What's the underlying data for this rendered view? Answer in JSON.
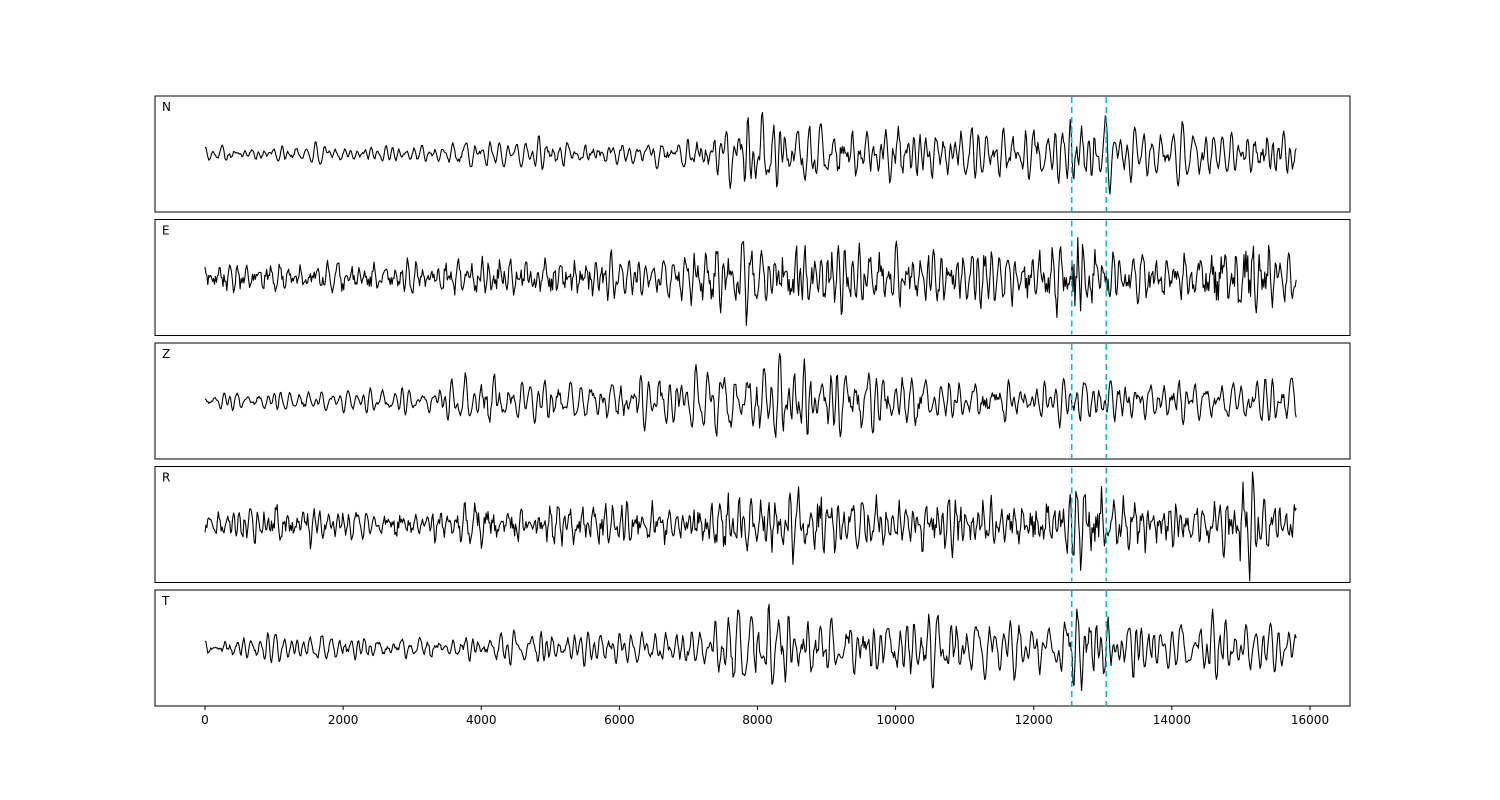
{
  "figure": {
    "background": "#ffffff",
    "trace_color": "#000000",
    "pick_color": "#00bfcf",
    "border_color": "#000000"
  },
  "chart_data": {
    "type": "line",
    "title": "",
    "xlabel": "",
    "ylabel": "",
    "grid": false,
    "legend": "none",
    "xlim": [
      -724,
      16580
    ],
    "x_range": [
      0,
      15800
    ],
    "xticks": [
      0,
      2000,
      4000,
      6000,
      8000,
      10000,
      12000,
      14000,
      16000
    ],
    "picks": [
      12550,
      13050
    ],
    "picks_style": "dashed-vertical",
    "series_description": "Five-component band-limited seismic waveform traces with amplitude envelopes; two cyan dashed vertical pick lines near x=12550 and x=13050",
    "panels": [
      {
        "label": "N",
        "seed": 101,
        "smooth": 2,
        "amp": 50,
        "envelope": [
          [
            0,
            0.16
          ],
          [
            1500,
            0.18
          ],
          [
            3000,
            0.2
          ],
          [
            4200,
            0.28
          ],
          [
            5000,
            0.26
          ],
          [
            6000,
            0.3
          ],
          [
            7000,
            0.42
          ],
          [
            7600,
            0.7
          ],
          [
            8100,
            1.0
          ],
          [
            8600,
            0.8
          ],
          [
            9200,
            0.65
          ],
          [
            10000,
            0.6
          ],
          [
            11000,
            0.55
          ],
          [
            12300,
            0.6
          ],
          [
            12650,
            1.0
          ],
          [
            13100,
            0.65
          ],
          [
            13600,
            0.55
          ],
          [
            14500,
            0.5
          ],
          [
            15300,
            0.5
          ],
          [
            15800,
            0.45
          ]
        ]
      },
      {
        "label": "E",
        "seed": 202,
        "smooth": 1,
        "amp": 48,
        "envelope": [
          [
            0,
            0.3
          ],
          [
            1200,
            0.34
          ],
          [
            2200,
            0.3
          ],
          [
            3200,
            0.33
          ],
          [
            3700,
            0.5
          ],
          [
            4500,
            0.42
          ],
          [
            5300,
            0.4
          ],
          [
            6000,
            0.48
          ],
          [
            6800,
            0.45
          ],
          [
            7400,
            0.6
          ],
          [
            7900,
            0.85
          ],
          [
            8400,
            0.75
          ],
          [
            9100,
            0.8
          ],
          [
            9800,
            0.65
          ],
          [
            10800,
            0.6
          ],
          [
            11800,
            0.55
          ],
          [
            12350,
            0.65
          ],
          [
            12650,
            1.0
          ],
          [
            13150,
            0.65
          ],
          [
            14000,
            0.55
          ],
          [
            14600,
            0.6
          ],
          [
            15050,
            1.0
          ],
          [
            15500,
            0.6
          ],
          [
            15800,
            0.85
          ]
        ]
      },
      {
        "label": "Z",
        "seed": 303,
        "smooth": 2,
        "amp": 52,
        "envelope": [
          [
            0,
            0.14
          ],
          [
            1200,
            0.2
          ],
          [
            2200,
            0.2
          ],
          [
            3200,
            0.3
          ],
          [
            4000,
            0.48
          ],
          [
            4800,
            0.42
          ],
          [
            5600,
            0.35
          ],
          [
            6300,
            0.5
          ],
          [
            6900,
            0.65
          ],
          [
            7500,
            0.8
          ],
          [
            7950,
            1.0
          ],
          [
            8400,
            0.85
          ],
          [
            9000,
            0.65
          ],
          [
            9700,
            0.7
          ],
          [
            10600,
            0.55
          ],
          [
            11600,
            0.48
          ],
          [
            12500,
            0.5
          ],
          [
            13200,
            0.45
          ],
          [
            14200,
            0.42
          ],
          [
            15000,
            0.5
          ],
          [
            15800,
            0.45
          ]
        ]
      },
      {
        "label": "R",
        "seed": 404,
        "smooth": 1,
        "amp": 48,
        "envelope": [
          [
            0,
            0.38
          ],
          [
            1000,
            0.42
          ],
          [
            2000,
            0.33
          ],
          [
            3000,
            0.3
          ],
          [
            3700,
            0.52
          ],
          [
            4400,
            0.48
          ],
          [
            5200,
            0.42
          ],
          [
            6000,
            0.48
          ],
          [
            6800,
            0.42
          ],
          [
            7400,
            0.58
          ],
          [
            7900,
            0.8
          ],
          [
            8500,
            0.72
          ],
          [
            9300,
            0.62
          ],
          [
            10300,
            0.58
          ],
          [
            11300,
            0.52
          ],
          [
            12300,
            0.6
          ],
          [
            12700,
            0.9
          ],
          [
            13200,
            0.62
          ],
          [
            14000,
            0.52
          ],
          [
            14700,
            0.55
          ],
          [
            15050,
            1.0
          ],
          [
            15450,
            0.5
          ],
          [
            15800,
            0.9
          ]
        ]
      },
      {
        "label": "T",
        "seed": 505,
        "smooth": 2,
        "amp": 50,
        "envelope": [
          [
            0,
            0.22
          ],
          [
            1200,
            0.28
          ],
          [
            2400,
            0.3
          ],
          [
            3600,
            0.3
          ],
          [
            4800,
            0.34
          ],
          [
            6000,
            0.32
          ],
          [
            7000,
            0.42
          ],
          [
            7600,
            0.65
          ],
          [
            8150,
            1.0
          ],
          [
            8700,
            0.8
          ],
          [
            9400,
            0.7
          ],
          [
            10300,
            0.62
          ],
          [
            11200,
            0.68
          ],
          [
            12000,
            0.6
          ],
          [
            12650,
            0.95
          ],
          [
            13300,
            0.6
          ],
          [
            14200,
            0.52
          ],
          [
            15100,
            0.55
          ],
          [
            15800,
            0.45
          ]
        ]
      }
    ]
  }
}
